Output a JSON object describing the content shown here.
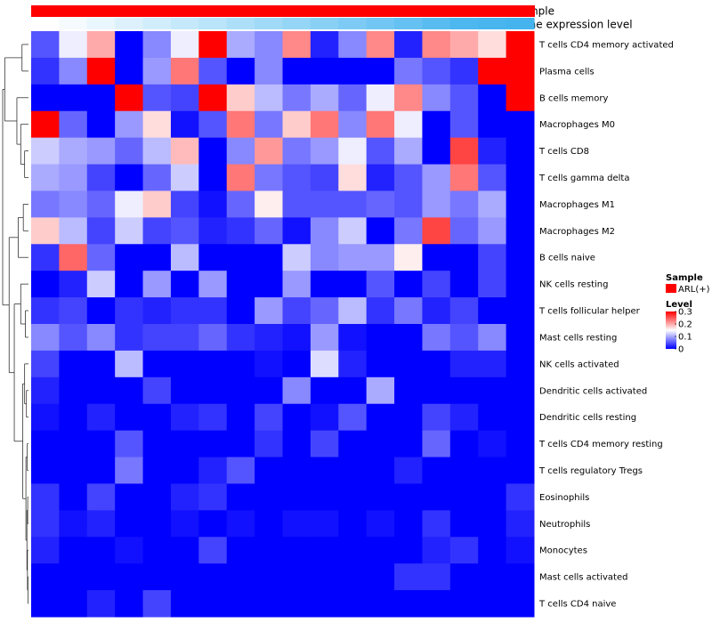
{
  "chart_data": {
    "type": "heatmap",
    "annotation_tracks": [
      "Sample",
      "Gene expression level"
    ],
    "sample_color": "#ff0000",
    "gene_expression_colors": [
      "#ffffff",
      "#f5fafe",
      "#e9f6fd",
      "#ddf1fc",
      "#d1edfb",
      "#c5e9fa",
      "#b9e4f9",
      "#addff8",
      "#a1daf7",
      "#95d5f6",
      "#89d0f5",
      "#7dcbf4",
      "#71c6f3",
      "#65c1f2",
      "#59bcf1",
      "#4db7f0",
      "#48b5ef",
      "#45b4ee"
    ],
    "rows": [
      "T cells CD4 memory activated",
      "Plasma cells",
      "B cells memory",
      "Macrophages M0",
      "T cells CD8",
      "T cells gamma delta",
      "Macrophages M1",
      "Macrophages M2",
      "B cells naive",
      "NK cells resting",
      "T cells follicular helper",
      "Mast cells resting",
      "NK cells activated",
      "Dendritic cells activated",
      "Dendritic cells resting",
      "T cells CD4 memory resting",
      "T cells regulatory  Tregs",
      "Eosinophils",
      "Neutrophils",
      "Monocytes",
      "Mast cells activated",
      "T cells CD4 naive"
    ],
    "n_columns": 18,
    "values": [
      [
        0.05,
        0.14,
        0.2,
        0.0,
        0.08,
        0.14,
        0.3,
        0.1,
        0.08,
        0.22,
        0.02,
        0.08,
        0.22,
        0.02,
        0.22,
        0.2,
        0.17,
        0.3
      ],
      [
        0.03,
        0.08,
        0.3,
        0.0,
        0.09,
        0.23,
        0.05,
        0.0,
        0.08,
        0.0,
        0.0,
        0.0,
        0.0,
        0.07,
        0.05,
        0.03,
        0.3,
        0.3
      ],
      [
        0.0,
        0.0,
        0.0,
        0.3,
        0.05,
        0.04,
        0.3,
        0.18,
        0.11,
        0.07,
        0.1,
        0.06,
        0.14,
        0.22,
        0.08,
        0.05,
        0.0,
        0.3
      ],
      [
        0.3,
        0.06,
        0.0,
        0.09,
        0.17,
        0.01,
        0.05,
        0.23,
        0.07,
        0.18,
        0.23,
        0.08,
        0.23,
        0.14,
        0.0,
        0.05,
        0.0,
        0.0
      ],
      [
        0.12,
        0.1,
        0.09,
        0.06,
        0.11,
        0.19,
        0.0,
        0.08,
        0.21,
        0.07,
        0.09,
        0.14,
        0.05,
        0.1,
        0.0,
        0.26,
        0.02,
        0.0
      ],
      [
        0.1,
        0.09,
        0.04,
        0.0,
        0.06,
        0.12,
        0.0,
        0.23,
        0.07,
        0.05,
        0.04,
        0.17,
        0.02,
        0.05,
        0.09,
        0.23,
        0.05,
        0.0
      ],
      [
        0.07,
        0.08,
        0.06,
        0.14,
        0.18,
        0.04,
        0.01,
        0.06,
        0.16,
        0.05,
        0.05,
        0.05,
        0.06,
        0.05,
        0.09,
        0.07,
        0.1,
        0.0
      ],
      [
        0.18,
        0.11,
        0.04,
        0.12,
        0.04,
        0.05,
        0.02,
        0.03,
        0.06,
        0.01,
        0.08,
        0.12,
        0.0,
        0.07,
        0.26,
        0.06,
        0.09,
        0.0
      ],
      [
        0.03,
        0.24,
        0.06,
        0.0,
        0.0,
        0.11,
        0.0,
        0.0,
        0.0,
        0.12,
        0.08,
        0.09,
        0.09,
        0.16,
        0.0,
        0.0,
        0.04,
        0.0
      ],
      [
        0.0,
        0.02,
        0.12,
        0.0,
        0.09,
        0.0,
        0.09,
        0.0,
        0.0,
        0.09,
        0.0,
        0.0,
        0.05,
        0.0,
        0.04,
        0.0,
        0.04,
        0.0
      ],
      [
        0.03,
        0.04,
        0.0,
        0.03,
        0.02,
        0.03,
        0.03,
        0.0,
        0.09,
        0.04,
        0.06,
        0.11,
        0.03,
        0.07,
        0.02,
        0.04,
        0.0,
        0.0
      ],
      [
        0.08,
        0.05,
        0.08,
        0.03,
        0.04,
        0.04,
        0.06,
        0.03,
        0.02,
        0.01,
        0.09,
        0.01,
        0.0,
        0.0,
        0.07,
        0.05,
        0.08,
        0.0
      ],
      [
        0.04,
        0.0,
        0.0,
        0.11,
        0.0,
        0.0,
        0.0,
        0.0,
        0.01,
        0.0,
        0.13,
        0.02,
        0.0,
        0.0,
        0.0,
        0.02,
        0.02,
        0.0
      ],
      [
        0.02,
        0.0,
        0.0,
        0.0,
        0.04,
        0.0,
        0.0,
        0.0,
        0.0,
        0.08,
        0.0,
        0.0,
        0.1,
        0.0,
        0.0,
        0.0,
        0.0,
        0.0
      ],
      [
        0.01,
        0.0,
        0.02,
        0.0,
        0.0,
        0.02,
        0.03,
        0.0,
        0.04,
        0.0,
        0.01,
        0.05,
        0.0,
        0.0,
        0.04,
        0.02,
        0.0,
        0.0
      ],
      [
        0.0,
        0.0,
        0.0,
        0.05,
        0.0,
        0.0,
        0.0,
        0.0,
        0.03,
        0.0,
        0.04,
        0.0,
        0.0,
        0.0,
        0.06,
        0.0,
        0.01,
        0.0
      ],
      [
        0.0,
        0.0,
        0.0,
        0.07,
        0.0,
        0.0,
        0.02,
        0.05,
        0.0,
        0.0,
        0.0,
        0.0,
        0.0,
        0.02,
        0.0,
        0.0,
        0.0,
        0.0
      ],
      [
        0.03,
        0.0,
        0.04,
        0.0,
        0.0,
        0.02,
        0.03,
        0.0,
        0.0,
        0.0,
        0.0,
        0.0,
        0.0,
        0.0,
        0.0,
        0.0,
        0.0,
        0.03
      ],
      [
        0.03,
        0.01,
        0.02,
        0.0,
        0.0,
        0.01,
        0.0,
        0.01,
        0.0,
        0.01,
        0.01,
        0.0,
        0.01,
        0.0,
        0.03,
        0.0,
        0.0,
        0.02
      ],
      [
        0.02,
        0.0,
        0.0,
        0.01,
        0.0,
        0.0,
        0.04,
        0.0,
        0.0,
        0.0,
        0.0,
        0.0,
        0.0,
        0.0,
        0.02,
        0.03,
        0.0,
        0.01
      ],
      [
        0.0,
        0.0,
        0.0,
        0.0,
        0.0,
        0.0,
        0.0,
        0.0,
        0.0,
        0.0,
        0.0,
        0.0,
        0.0,
        0.03,
        0.03,
        0.0,
        0.0,
        0.0
      ],
      [
        0.0,
        0.0,
        0.02,
        0.0,
        0.04,
        0.0,
        0.0,
        0.0,
        0.0,
        0.0,
        0.0,
        0.0,
        0.0,
        0.0,
        0.0,
        0.0,
        0.0,
        0.0
      ]
    ],
    "color_scale": {
      "min": 0,
      "max": 0.3,
      "low": "#0000ff",
      "mid": "#ffffff",
      "high": "#ff0000"
    },
    "legend": {
      "sample_title": "Sample",
      "sample_entry": "ARL(+)",
      "level_title": "Level",
      "level_ticks": [
        0.3,
        0.2,
        0.1,
        0
      ],
      "level_tick_labels": [
        "0.3",
        "0.2",
        "0.1",
        "0"
      ]
    },
    "dendrogram": "rows-left"
  }
}
